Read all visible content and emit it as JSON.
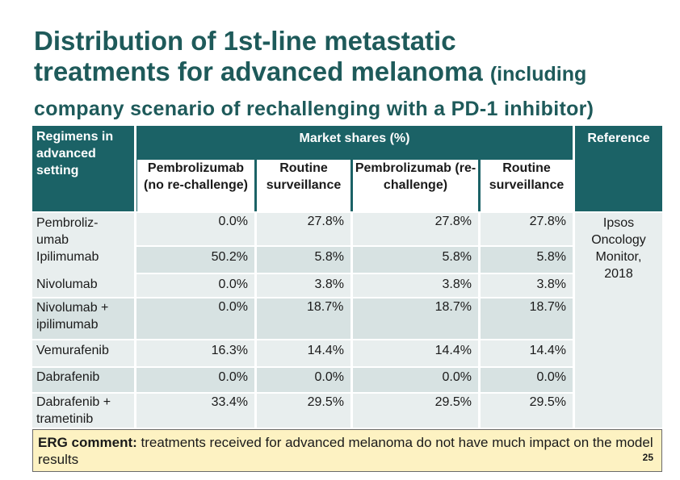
{
  "slide": {
    "title_line1": "Distribution of 1st-line metastatic",
    "title_line2": "treatments for advanced melanoma",
    "title_tail": "(including",
    "subtitle": "company scenario of rechallenging with a PD-1 inhibitor)"
  },
  "table": {
    "corner_header": "Regimens in advanced setting",
    "market_header": "Market shares (%)",
    "reference_header": "Reference",
    "subheaders": [
      "Pembrolizumab (no re-challenge)",
      "Routine surveillance",
      "Pembrolizumab (re-challenge)",
      "Routine surveillance"
    ],
    "rows": [
      {
        "label": "Pembroliz-umab",
        "values": [
          "0.0%",
          "27.8%",
          "27.8%",
          "27.8%"
        ]
      },
      {
        "label": "Ipilimumab",
        "values": [
          "50.2%",
          "5.8%",
          "5.8%",
          "5.8%"
        ]
      },
      {
        "label": "Nivolumab",
        "values": [
          "0.0%",
          "3.8%",
          "3.8%",
          "3.8%"
        ]
      },
      {
        "label": "Nivolumab + ipilimumab",
        "values": [
          "0.0%",
          "18.7%",
          "18.7%",
          "18.7%"
        ]
      },
      {
        "label": "Vemurafenib",
        "values": [
          "16.3%",
          "14.4%",
          "14.4%",
          "14.4%"
        ]
      },
      {
        "label": "Dabrafenib",
        "values": [
          "0.0%",
          "0.0%",
          "0.0%",
          "0.0%"
        ]
      },
      {
        "label": "Dabrafenib + trametinib",
        "values": [
          "33.4%",
          "29.5%",
          "29.5%",
          "29.5%"
        ]
      }
    ],
    "reference_text": "Ipsos Oncology Monitor, 2018"
  },
  "comment": {
    "label": "ERG comment:",
    "text": " treatments received for advanced melanoma do not have much impact on the model results",
    "page_number": "25"
  }
}
